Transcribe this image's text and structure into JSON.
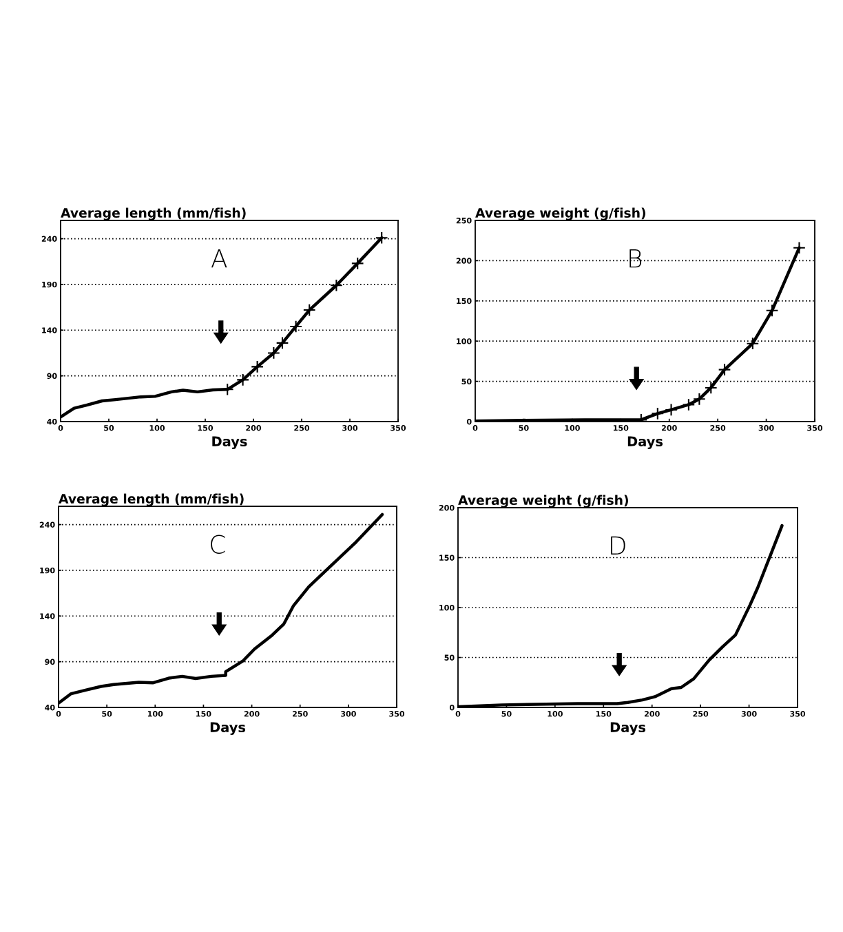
{
  "chart_data": [
    {
      "type": "line",
      "title": "Average length (mm/fish)",
      "xlabel": "Days",
      "xlim": [
        0,
        350
      ],
      "xticks": [
        0,
        50,
        100,
        150,
        200,
        250,
        300,
        350
      ],
      "ylim": [
        40,
        260
      ],
      "yticks": [
        40,
        90,
        140,
        190,
        240
      ],
      "grid": "y",
      "annotations": [
        "A"
      ],
      "series": [
        {
          "color": "#000000",
          "marker": "none",
          "x": [
            0,
            14,
            27,
            43,
            57,
            83,
            98,
            115,
            127,
            142,
            158,
            173
          ],
          "values": [
            45,
            54.6,
            58,
            62.6,
            64,
            67,
            67.6,
            72.5,
            74.3,
            72.5,
            74.7,
            75.2
          ]
        },
        {
          "color": "#000000",
          "marker": "cross",
          "x": [
            173,
            189,
            204,
            221,
            230,
            244,
            258,
            286,
            308,
            333
          ],
          "values": [
            75.2,
            85.7,
            100,
            115,
            126,
            144,
            162,
            189,
            213,
            241
          ]
        }
      ]
    },
    {
      "type": "line",
      "title": "Average weight (g/fish)",
      "xlabel": "Days",
      "xlim": [
        0,
        350
      ],
      "xticks": [
        0,
        50,
        100,
        150,
        200,
        250,
        300,
        350
      ],
      "ylim": [
        0,
        250
      ],
      "yticks": [
        0,
        50,
        100,
        150,
        200,
        250
      ],
      "grid": "y",
      "annotations": [
        "B"
      ],
      "series": [
        {
          "color": "#000000",
          "marker": "none",
          "x": [
            0,
            48,
            113,
            171
          ],
          "values": [
            0.6,
            1.6,
            2.2,
            2.2
          ]
        },
        {
          "color": "#000000",
          "marker": "cross",
          "x": [
            171,
            188,
            202,
            220,
            231,
            243,
            257,
            286,
            306,
            334
          ],
          "values": [
            2.2,
            10,
            14.6,
            21,
            28,
            42,
            64.5,
            97,
            138,
            216
          ]
        }
      ]
    },
    {
      "type": "line",
      "title": "Average length (mm/fish)",
      "xlabel": "Days",
      "xlim": [
        0,
        350
      ],
      "xticks": [
        0,
        50,
        100,
        150,
        200,
        250,
        300,
        350
      ],
      "ylim": [
        40,
        260
      ],
      "yticks": [
        40,
        90,
        140,
        190,
        240
      ],
      "grid": "y",
      "annotations": [
        "C"
      ],
      "series": [
        {
          "color": "#000000",
          "marker": "none",
          "x": [
            0,
            13,
            28,
            44,
            57,
            83,
            98,
            114,
            128,
            142,
            158,
            173,
            173,
            191,
            203,
            221,
            233,
            243,
            259,
            274,
            308,
            335
          ],
          "values": [
            44.7,
            55,
            59,
            63,
            65,
            67.5,
            67,
            72,
            74,
            71.6,
            74,
            75,
            79,
            91,
            104,
            119,
            131,
            151,
            172,
            187,
            221,
            251
          ]
        }
      ]
    },
    {
      "type": "line",
      "title": "Average weight (g/fish)",
      "xlabel": "Days",
      "xlim": [
        0,
        350
      ],
      "xticks": [
        0,
        50,
        100,
        150,
        200,
        250,
        300,
        350
      ],
      "ylim": [
        0,
        200
      ],
      "yticks": [
        0,
        50,
        100,
        150,
        200
      ],
      "grid": "y",
      "annotations": [
        "D"
      ],
      "series": [
        {
          "color": "#000000",
          "marker": "none",
          "x": [
            0,
            45,
            123,
            164,
            175,
            190,
            203,
            220,
            230,
            243,
            259,
            273,
            286,
            301,
            309,
            334
          ],
          "values": [
            0.75,
            2.5,
            3.75,
            3.75,
            5,
            7.5,
            10.75,
            18.75,
            20,
            28.75,
            47.5,
            61,
            72.5,
            102.5,
            120,
            182
          ]
        }
      ]
    }
  ]
}
